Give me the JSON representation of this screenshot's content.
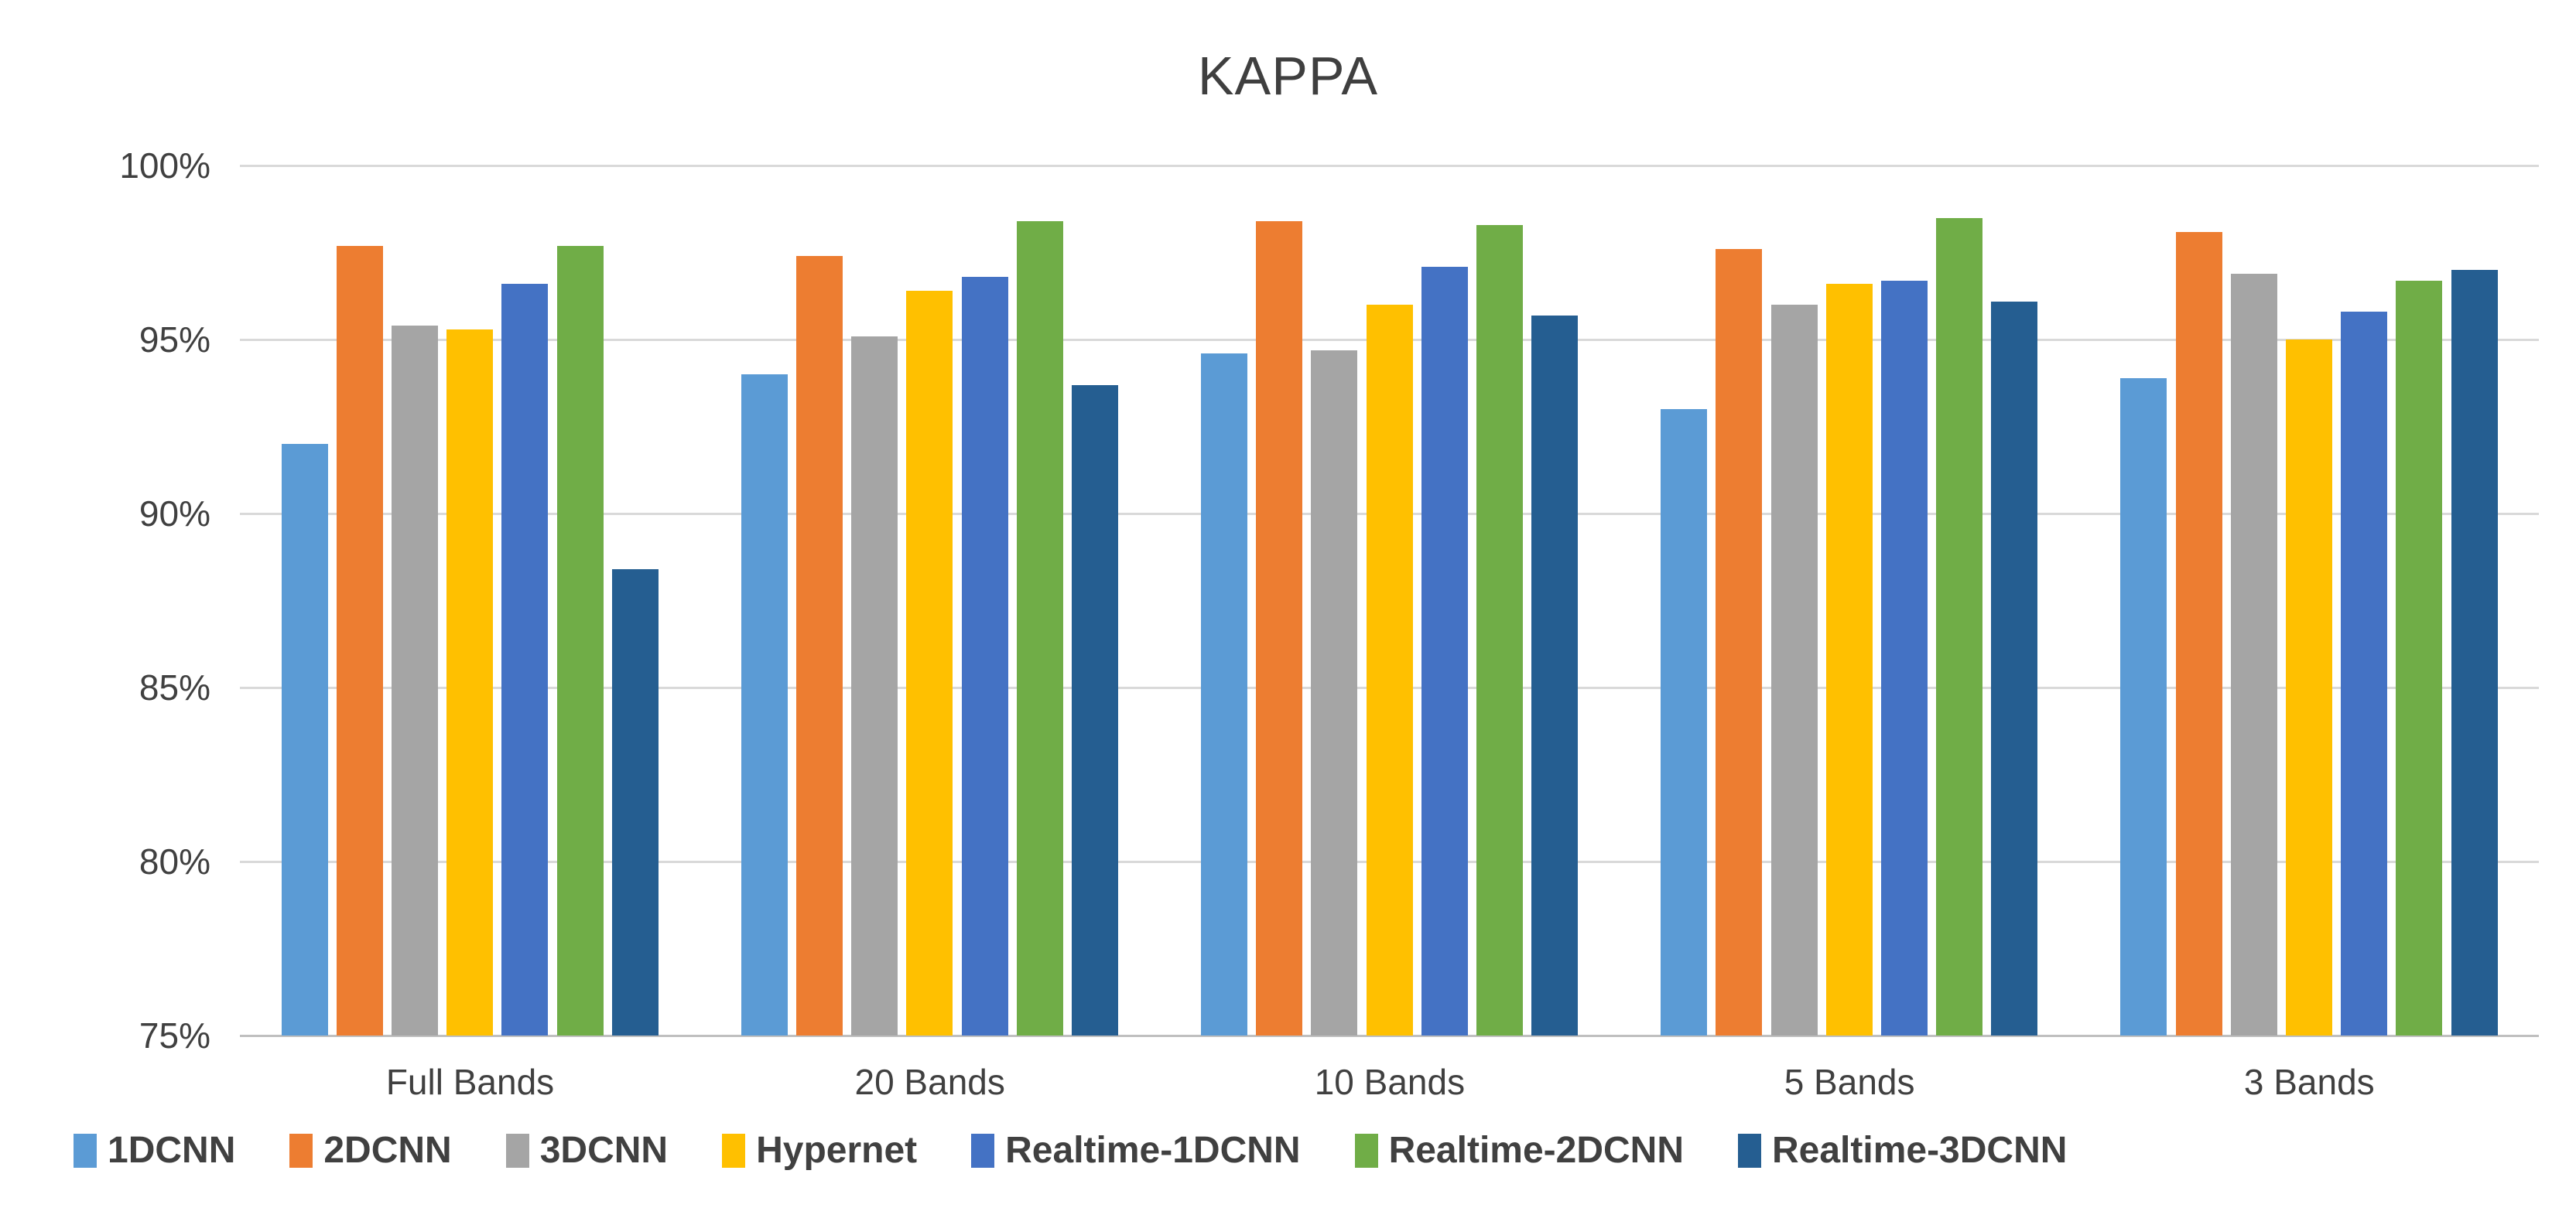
{
  "chart_data": {
    "type": "bar",
    "title": "KAPPA",
    "categories": [
      "Full Bands",
      "20 Bands",
      "10 Bands",
      "5 Bands",
      "3 Bands"
    ],
    "series": [
      {
        "name": "1DCNN",
        "color": "#5B9BD5",
        "values": [
          92.0,
          94.0,
          94.6,
          93.0,
          93.9
        ]
      },
      {
        "name": "2DCNN",
        "color": "#ED7D31",
        "values": [
          97.7,
          97.4,
          98.4,
          97.6,
          98.1
        ]
      },
      {
        "name": "3DCNN",
        "color": "#A5A5A5",
        "values": [
          95.4,
          95.1,
          94.7,
          96.0,
          96.9
        ]
      },
      {
        "name": "Hypernet",
        "color": "#FFC000",
        "values": [
          95.3,
          96.4,
          96.0,
          96.6,
          95.0
        ]
      },
      {
        "name": "Realtime-1DCNN",
        "color": "#4472C4",
        "values": [
          96.6,
          96.8,
          97.1,
          96.7,
          95.8
        ]
      },
      {
        "name": "Realtime-2DCNN",
        "color": "#70AD47",
        "values": [
          97.7,
          98.4,
          98.3,
          98.5,
          96.7
        ]
      },
      {
        "name": "Realtime-3DCNN",
        "color": "#255E91",
        "values": [
          88.4,
          93.7,
          95.7,
          96.1,
          97.0
        ]
      }
    ],
    "ylabel": "",
    "xlabel": "",
    "ylim": [
      75,
      100
    ],
    "ytick_step": 5,
    "ytick_labels": [
      "75%",
      "80%",
      "85%",
      "90%",
      "95%",
      "100%"
    ],
    "grid": true,
    "legend_position": "bottom",
    "colors": {
      "gridline": "#D9D9D9",
      "axis_line": "#BFBFBF",
      "text": "#404040",
      "title_text": "#3F3F3F",
      "background": "#FFFFFF"
    }
  }
}
